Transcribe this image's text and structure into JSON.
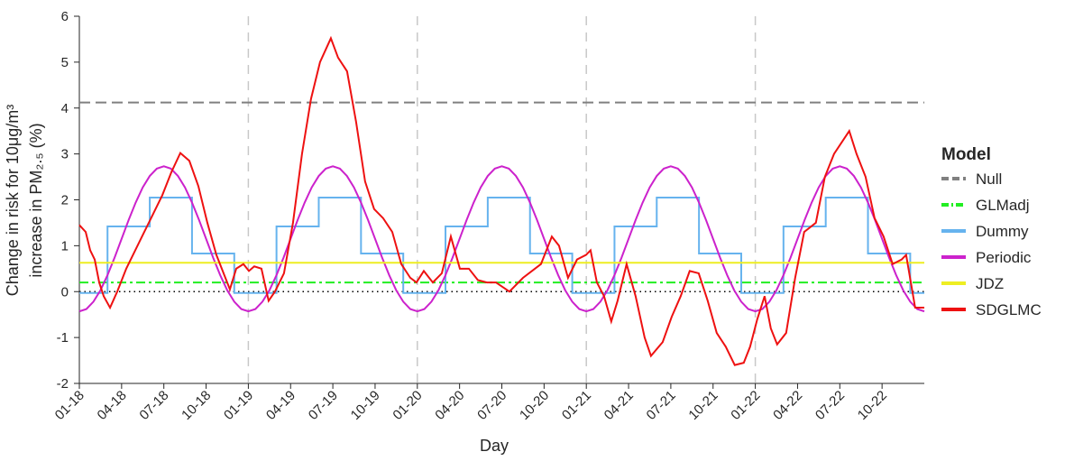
{
  "chart_data": {
    "type": "line",
    "ylabel": [
      "Change in risk for 10μg/m³",
      "increase in PM₂.₅ (%)"
    ],
    "xlabel": "Day",
    "legend_title": "Model",
    "legend": "right",
    "xlim": [
      0,
      60
    ],
    "ylim": [
      -2,
      6
    ],
    "yticks": [
      -2,
      -1,
      0,
      1,
      2,
      3,
      4,
      5,
      6
    ],
    "xticks": [
      {
        "value": 0,
        "label": "01-18"
      },
      {
        "value": 3,
        "label": "04-18"
      },
      {
        "value": 6,
        "label": "07-18"
      },
      {
        "value": 9,
        "label": "10-18"
      },
      {
        "value": 12,
        "label": "01-19"
      },
      {
        "value": 15,
        "label": "04-19"
      },
      {
        "value": 18,
        "label": "07-19"
      },
      {
        "value": 21,
        "label": "10-19"
      },
      {
        "value": 24,
        "label": "01-20"
      },
      {
        "value": 27,
        "label": "04-20"
      },
      {
        "value": 30,
        "label": "07-20"
      },
      {
        "value": 33,
        "label": "10-20"
      },
      {
        "value": 36,
        "label": "01-21"
      },
      {
        "value": 39,
        "label": "04-21"
      },
      {
        "value": 42,
        "label": "07-21"
      },
      {
        "value": 45,
        "label": "10-21"
      },
      {
        "value": 48,
        "label": "01-22"
      },
      {
        "value": 51,
        "label": "04-22"
      },
      {
        "value": 54,
        "label": "07-22"
      },
      {
        "value": 57,
        "label": "10-22"
      }
    ],
    "reference_lines": {
      "x": [
        12,
        24,
        36,
        48
      ],
      "y": [
        0
      ]
    },
    "series": [
      {
        "name": "Null",
        "color": "#808080",
        "dash": "dashed",
        "x": [
          0,
          60
        ],
        "values": [
          4.12,
          4.12
        ]
      },
      {
        "name": "GLMadj",
        "color": "#22ee22",
        "dash": "dashdot",
        "x": [
          0,
          60
        ],
        "values": [
          0.2,
          0.2
        ]
      },
      {
        "name": "Dummy",
        "color": "#66b3ee",
        "dash": "solid",
        "step": true,
        "x": [
          0,
          2,
          5,
          8,
          11,
          14,
          17,
          20,
          23,
          26,
          29,
          32,
          35,
          38,
          41,
          44,
          47,
          50,
          53,
          56,
          59,
          60
        ],
        "values": [
          -0.03,
          1.42,
          2.05,
          0.83,
          -0.03,
          1.42,
          2.05,
          0.83,
          -0.03,
          1.42,
          2.05,
          0.83,
          -0.03,
          1.42,
          2.05,
          0.83,
          -0.03,
          1.42,
          2.05,
          0.83,
          -0.03,
          -0.03
        ]
      },
      {
        "name": "Periodic",
        "color": "#cc22cc",
        "dash": "solid",
        "x": [
          0,
          0.5,
          1,
          1.5,
          2,
          2.5,
          3,
          3.5,
          4,
          4.5,
          5,
          5.5,
          6,
          6.5,
          7,
          7.5,
          8,
          8.5,
          9,
          9.5,
          10,
          10.5,
          11,
          11.5,
          12,
          12.5,
          13,
          13.5,
          14,
          14.5,
          15,
          15.5,
          16,
          16.5,
          17,
          17.5,
          18,
          18.5,
          19,
          19.5,
          20,
          20.5,
          21,
          21.5,
          22,
          22.5,
          23,
          23.5,
          24,
          24.5,
          25,
          25.5,
          26,
          26.5,
          27,
          27.5,
          28,
          28.5,
          29,
          29.5,
          30,
          30.5,
          31,
          31.5,
          32,
          32.5,
          33,
          33.5,
          34,
          34.5,
          35,
          35.5,
          36,
          36.5,
          37,
          37.5,
          38,
          38.5,
          39,
          39.5,
          40,
          40.5,
          41,
          41.5,
          42,
          42.5,
          43,
          43.5,
          44,
          44.5,
          45,
          45.5,
          46,
          46.5,
          47,
          47.5,
          48,
          48.5,
          49,
          49.5,
          50,
          50.5,
          51,
          51.5,
          52,
          52.5,
          53,
          53.5,
          54,
          54.5,
          55,
          55.5,
          56,
          56.5,
          57,
          57.5,
          58,
          58.5,
          59,
          59.5,
          60
        ],
        "values": [
          -0.43,
          -0.38,
          -0.22,
          0.03,
          0.36,
          0.74,
          1.15,
          1.56,
          1.94,
          2.27,
          2.52,
          2.68,
          2.73,
          2.68,
          2.52,
          2.27,
          1.94,
          1.56,
          1.15,
          0.74,
          0.36,
          0.03,
          -0.22,
          -0.38,
          -0.43,
          -0.38,
          -0.22,
          0.03,
          0.36,
          0.74,
          1.15,
          1.56,
          1.94,
          2.27,
          2.52,
          2.68,
          2.73,
          2.68,
          2.52,
          2.27,
          1.94,
          1.56,
          1.15,
          0.74,
          0.36,
          0.03,
          -0.22,
          -0.38,
          -0.43,
          -0.38,
          -0.22,
          0.03,
          0.36,
          0.74,
          1.15,
          1.56,
          1.94,
          2.27,
          2.52,
          2.68,
          2.73,
          2.68,
          2.52,
          2.27,
          1.94,
          1.56,
          1.15,
          0.74,
          0.36,
          0.03,
          -0.22,
          -0.38,
          -0.43,
          -0.38,
          -0.22,
          0.03,
          0.36,
          0.74,
          1.15,
          1.56,
          1.94,
          2.27,
          2.52,
          2.68,
          2.73,
          2.68,
          2.52,
          2.27,
          1.94,
          1.56,
          1.15,
          0.74,
          0.36,
          0.03,
          -0.22,
          -0.38,
          -0.43,
          -0.38,
          -0.22,
          0.03,
          0.36,
          0.74,
          1.15,
          1.56,
          1.94,
          2.27,
          2.52,
          2.68,
          2.73,
          2.68,
          2.52,
          2.27,
          1.94,
          1.56,
          1.15,
          0.74,
          0.36,
          0.03,
          -0.22,
          -0.38,
          -0.43
        ]
      },
      {
        "name": "JDZ",
        "color": "#eeee22",
        "dash": "solid",
        "x": [
          0,
          60
        ],
        "values": [
          0.63,
          0.63
        ]
      },
      {
        "name": "SDGLMC",
        "color": "#ee1111",
        "dash": "solid",
        "x": [
          0,
          0.45,
          0.77,
          1.09,
          1.41,
          1.73,
          2.18,
          2.69,
          3.33,
          3.97,
          4.61,
          5.25,
          5.89,
          6.53,
          7.17,
          7.81,
          8.45,
          9.09,
          9.73,
          10.37,
          10.69,
          11.14,
          11.65,
          12.04,
          12.42,
          12.93,
          13.44,
          13.89,
          14.53,
          15.17,
          15.81,
          16.45,
          17.09,
          17.86,
          18.37,
          19.01,
          19.65,
          20.29,
          20.93,
          21.57,
          22.22,
          22.86,
          23.5,
          23.94,
          24.46,
          25.1,
          25.74,
          26.38,
          27.02,
          27.66,
          28.3,
          28.94,
          29.58,
          30.54,
          31.5,
          32.78,
          33.55,
          34.06,
          34.7,
          35.34,
          35.98,
          36.3,
          36.75,
          37.26,
          37.77,
          38.22,
          38.86,
          39.5,
          40.14,
          40.59,
          41.42,
          42.06,
          42.7,
          43.34,
          43.98,
          44.62,
          45.26,
          45.9,
          46.54,
          47.18,
          47.63,
          48.14,
          48.66,
          49.1,
          49.55,
          50.19,
          50.83,
          51.47,
          52.3,
          52.94,
          53.59,
          54.67,
          55.19,
          55.83,
          56.47,
          57.11,
          57.75,
          58.39,
          58.71,
          59.35,
          60
        ],
        "values": [
          1.45,
          1.3,
          0.9,
          0.7,
          0.2,
          -0.1,
          -0.35,
          0,
          0.5,
          0.9,
          1.3,
          1.7,
          2.1,
          2.6,
          3.02,
          2.85,
          2.3,
          1.5,
          0.8,
          0.3,
          0.05,
          0.5,
          0.6,
          0.45,
          0.55,
          0.5,
          -0.2,
          0,
          0.4,
          1.5,
          3,
          4.2,
          5,
          5.52,
          5.1,
          4.8,
          3.7,
          2.4,
          1.8,
          1.6,
          1.3,
          0.6,
          0.3,
          0.2,
          0.45,
          0.2,
          0.4,
          1.2,
          0.5,
          0.5,
          0.25,
          0.2,
          0.2,
          0,
          0.3,
          0.6,
          1.2,
          1,
          0.3,
          0.7,
          0.8,
          0.9,
          0.2,
          -0.1,
          -0.65,
          -0.2,
          0.6,
          -0.1,
          -1,
          -1.4,
          -1.1,
          -0.55,
          -0.1,
          0.45,
          0.4,
          -0.2,
          -0.9,
          -1.2,
          -1.6,
          -1.55,
          -1.2,
          -0.6,
          -0.1,
          -0.8,
          -1.15,
          -0.9,
          0.3,
          1.3,
          1.5,
          2.5,
          3,
          3.5,
          3,
          2.5,
          1.6,
          1.2,
          0.6,
          0.7,
          0.8,
          -0.35,
          -0.35
        ]
      }
    ]
  }
}
